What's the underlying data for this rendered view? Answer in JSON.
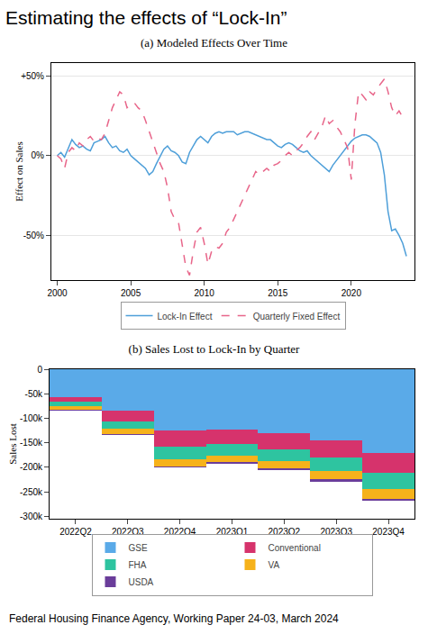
{
  "header": {
    "title": "Estimating the effects of “Lock-In”"
  },
  "footer": {
    "source": "Federal Housing Finance Agency, Working Paper 24-03, March 2024"
  },
  "chart_data": [
    {
      "type": "line",
      "title": "(a) Modeled Effects Over Time",
      "y_label": "Effect on Sales",
      "x": [
        2000,
        2000.25,
        2000.5,
        2000.75,
        2001,
        2001.25,
        2001.5,
        2001.75,
        2002,
        2002.25,
        2002.5,
        2002.75,
        2003,
        2003.25,
        2003.5,
        2003.75,
        2004,
        2004.25,
        2004.5,
        2004.75,
        2005,
        2005.25,
        2005.5,
        2005.75,
        2006,
        2006.25,
        2006.5,
        2006.75,
        2007,
        2007.25,
        2007.5,
        2007.75,
        2008,
        2008.25,
        2008.5,
        2008.75,
        2009,
        2009.25,
        2009.5,
        2009.75,
        2010,
        2010.25,
        2010.5,
        2010.75,
        2011,
        2011.25,
        2011.5,
        2011.75,
        2012,
        2012.25,
        2012.5,
        2012.75,
        2013,
        2013.25,
        2013.5,
        2013.75,
        2014,
        2014.25,
        2014.5,
        2014.75,
        2015,
        2015.25,
        2015.5,
        2015.75,
        2016,
        2016.25,
        2016.5,
        2016.75,
        2017,
        2017.25,
        2017.5,
        2017.75,
        2018,
        2018.25,
        2018.5,
        2018.75,
        2019,
        2019.25,
        2019.5,
        2019.75,
        2020,
        2020.25,
        2020.5,
        2020.75,
        2021,
        2021.25,
        2021.5,
        2021.75,
        2022,
        2022.25,
        2022.5,
        2022.75,
        2023,
        2023.25,
        2023.5,
        2023.75
      ],
      "series": [
        {
          "name": "Lock-In Effect",
          "color": "#4e9fd9",
          "line_style": "solid",
          "values": [
            0,
            2,
            -1,
            4,
            10,
            7,
            5,
            6,
            4,
            3,
            8,
            9,
            10,
            12,
            8,
            5,
            6,
            3,
            2,
            4,
            0,
            -2,
            -4,
            -6,
            -8,
            -12,
            -10,
            -5,
            0,
            4,
            6,
            3,
            2,
            0,
            -4,
            -5,
            2,
            6,
            10,
            12,
            10,
            8,
            12,
            14,
            15,
            14,
            15,
            15,
            15,
            13,
            14,
            15,
            15,
            14,
            13,
            12,
            11,
            10,
            10,
            8,
            6,
            5,
            7,
            8,
            7,
            5,
            3,
            2,
            3,
            0,
            -2,
            -4,
            -6,
            -8,
            -10,
            -6,
            -3,
            0,
            3,
            6,
            9,
            11,
            12,
            13,
            13,
            12,
            10,
            8,
            2,
            -12,
            -35,
            -47,
            -46,
            -50,
            -55,
            -63
          ]
        },
        {
          "name": "Quarterly Fixed Effect",
          "color": "#e8668a",
          "line_style": "dash",
          "values": [
            0,
            -2,
            -8,
            2,
            5,
            3,
            8,
            6,
            10,
            12,
            9,
            11,
            10,
            14,
            22,
            30,
            35,
            40,
            38,
            30,
            32,
            33,
            30,
            28,
            22,
            15,
            8,
            2,
            -5,
            -10,
            -20,
            -35,
            -40,
            -42,
            -55,
            -70,
            -75,
            -60,
            -48,
            -45,
            -55,
            -68,
            -60,
            -57,
            -58,
            -55,
            -48,
            -45,
            -40,
            -35,
            -30,
            -25,
            -20,
            -14,
            -10,
            -12,
            -10,
            -8,
            -10,
            -6,
            -5,
            -3,
            0,
            2,
            0,
            3,
            5,
            8,
            12,
            15,
            10,
            14,
            18,
            25,
            20,
            22,
            18,
            15,
            10,
            5,
            -15,
            20,
            40,
            38,
            35,
            40,
            38,
            42,
            45,
            48,
            40,
            30,
            25,
            28,
            24,
            26
          ]
        }
      ],
      "xlim": [
        1999.6,
        2024.3
      ],
      "xticks": [
        2000,
        2005,
        2010,
        2015,
        2020
      ],
      "ylim": [
        -78,
        58
      ],
      "yticks": [
        {
          "value": 50,
          "label": "+50%"
        },
        {
          "value": 0,
          "label": "0%"
        },
        {
          "value": -50,
          "label": "-50%"
        }
      ],
      "grid": true,
      "legend": "bottom"
    },
    {
      "type": "bar",
      "title": "(b) Sales Lost to Lock-In by Quarter",
      "y_label": "Sales Lost",
      "categories": [
        "2022Q2",
        "2022Q3",
        "2022Q4",
        "2023Q1",
        "2023Q2",
        "2023Q3",
        "2023Q4"
      ],
      "series": [
        {
          "name": "GSE",
          "color": "#5aaae8",
          "values": [
            -57000,
            -85000,
            -125000,
            -123000,
            -130000,
            -145000,
            -170000
          ]
        },
        {
          "name": "Conventional",
          "color": "#d6336c",
          "values": [
            -10000,
            -22000,
            -33000,
            -30000,
            -33000,
            -35000,
            -42000
          ]
        },
        {
          "name": "FHA",
          "color": "#2ec4a0",
          "values": [
            -8000,
            -15000,
            -25000,
            -23000,
            -25000,
            -28000,
            -32000
          ]
        },
        {
          "name": "VA",
          "color": "#f6b21b",
          "values": [
            -7000,
            -10000,
            -15000,
            -14000,
            -15000,
            -17000,
            -20000
          ]
        },
        {
          "name": "USDA",
          "color": "#6a3d9a",
          "values": [
            -2000,
            -3000,
            -3000,
            -3000,
            -3000,
            -4000,
            -5000
          ]
        }
      ],
      "stacked": true,
      "ylim": [
        -305000,
        0
      ],
      "yticks": [
        0,
        {
          "value": -50000,
          "label": "-50k"
        },
        {
          "value": -100000,
          "label": "-100k"
        },
        {
          "value": -150000,
          "label": "-150k"
        },
        {
          "value": -200000,
          "label": "-200k"
        },
        {
          "value": -250000,
          "label": "-250k"
        },
        {
          "value": -300000,
          "label": "-300k"
        }
      ],
      "grid": false,
      "legend": "bottom"
    }
  ]
}
